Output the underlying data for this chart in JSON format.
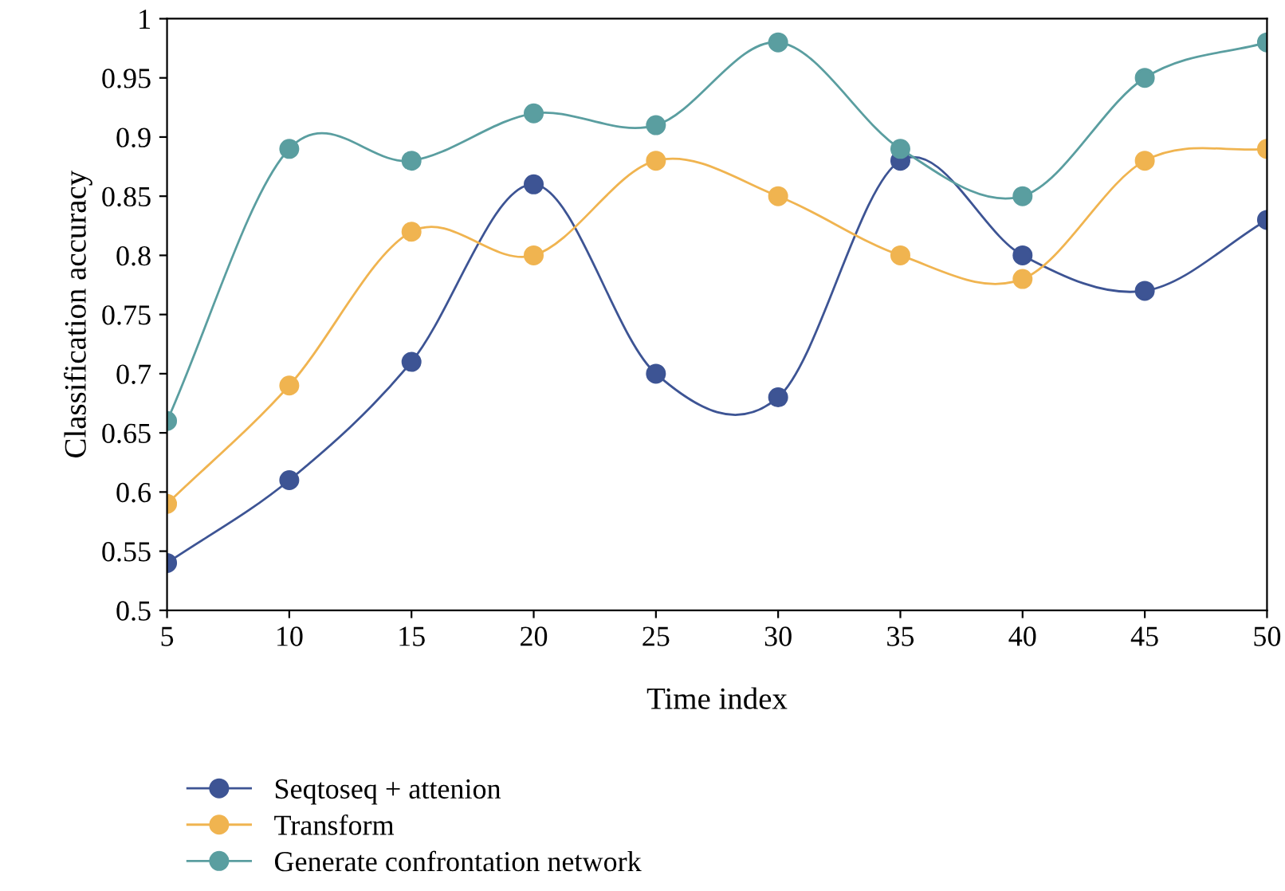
{
  "chart_data": {
    "type": "line",
    "xlabel": "Time index",
    "ylabel": "Classification accuracy",
    "x": [
      5,
      10,
      15,
      20,
      25,
      30,
      35,
      40,
      45,
      50
    ],
    "series": [
      {
        "name": "Seqtoseq + attenion",
        "color": "#3d5494",
        "values": [
          0.54,
          0.61,
          0.71,
          0.86,
          0.7,
          0.68,
          0.88,
          0.8,
          0.77,
          0.83
        ]
      },
      {
        "name": "Transform",
        "color": "#f0b450",
        "values": [
          0.59,
          0.69,
          0.82,
          0.8,
          0.88,
          0.85,
          0.8,
          0.78,
          0.88,
          0.89
        ]
      },
      {
        "name": "Generate confrontation network",
        "color": "#5a9ea0",
        "values": [
          0.66,
          0.89,
          0.88,
          0.92,
          0.91,
          0.98,
          0.89,
          0.85,
          0.95,
          0.98
        ]
      }
    ],
    "xlim": [
      5,
      50
    ],
    "xticks": [
      5,
      10,
      15,
      20,
      25,
      30,
      35,
      40,
      45,
      50
    ],
    "ylim": [
      0.5,
      1
    ],
    "yticks": [
      0.5,
      0.55,
      0.6,
      0.65,
      0.7,
      0.75,
      0.8,
      0.85,
      0.9,
      0.95,
      1
    ],
    "grid": false,
    "legend": "bottom",
    "marker": "circle",
    "line_style": "solid"
  }
}
